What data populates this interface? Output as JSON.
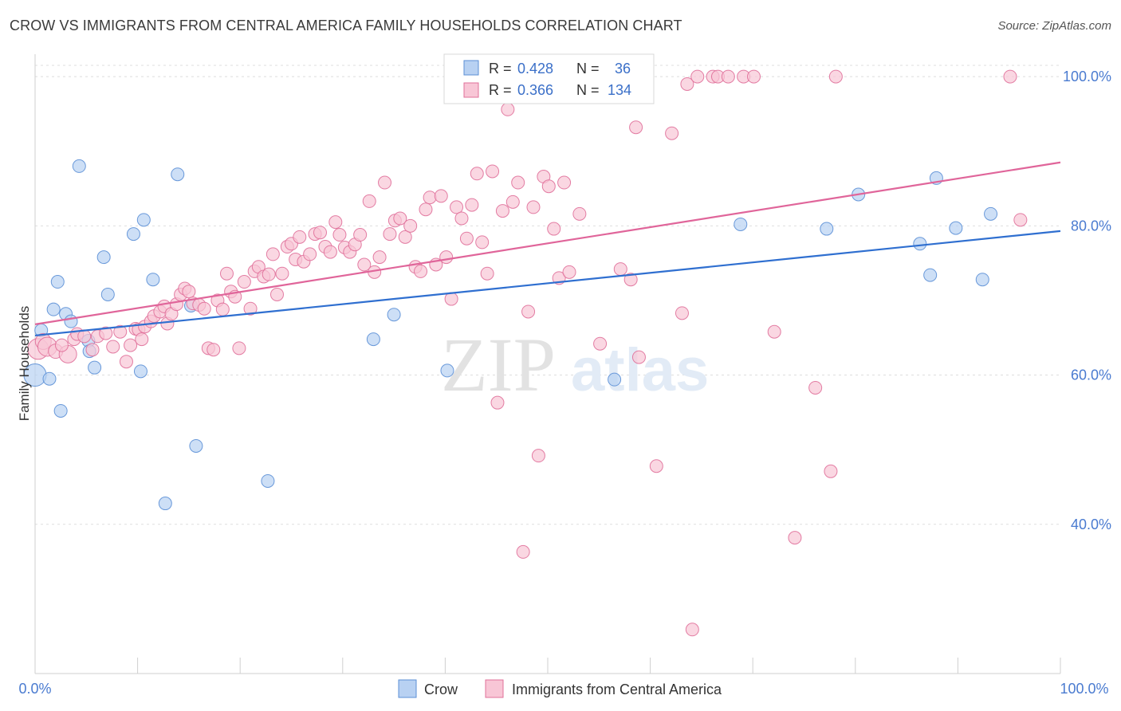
{
  "title": "CROW VS IMMIGRANTS FROM CENTRAL AMERICA FAMILY HOUSEHOLDS CORRELATION CHART",
  "source": "Source: ZipAtlas.com",
  "watermark": {
    "zip": "ZIP",
    "atlas": "atlas"
  },
  "chart_data": {
    "type": "scatter",
    "ylabel": "Family Households",
    "xlabel": "",
    "xlim": [
      0,
      100
    ],
    "ylim": [
      20,
      103
    ],
    "x_tick_labels": [
      "0.0%",
      "100.0%"
    ],
    "y_ticks": [
      40,
      60,
      80,
      100
    ],
    "y_tick_labels": [
      "40.0%",
      "60.0%",
      "80.0%",
      "100.0%"
    ],
    "grid": true,
    "legend_position": "top-center",
    "series": [
      {
        "name": "Crow",
        "color": "#5b8fd6",
        "fill": "#b8d1f2",
        "r_label": "R =",
        "r_value": "0.428",
        "n_label": "N =",
        "n_value": "36",
        "trend": [
          [
            0,
            65.3
          ],
          [
            100,
            79.3
          ]
        ],
        "points": [
          [
            0,
            60,
            14
          ],
          [
            0.6,
            66,
            8
          ],
          [
            1.4,
            59.5,
            8
          ],
          [
            1.8,
            68.8,
            8
          ],
          [
            2.2,
            72.5,
            8
          ],
          [
            2.5,
            55.2,
            8
          ],
          [
            3,
            68.2,
            8
          ],
          [
            3.5,
            67.2,
            8
          ],
          [
            4.3,
            88,
            8
          ],
          [
            5.2,
            64.6,
            8
          ],
          [
            5.3,
            63.2,
            8
          ],
          [
            5.8,
            61,
            8
          ],
          [
            6.7,
            75.8,
            8
          ],
          [
            7.1,
            70.8,
            8
          ],
          [
            9.6,
            78.9,
            8
          ],
          [
            10.3,
            60.5,
            8
          ],
          [
            10.6,
            80.8,
            8
          ],
          [
            11.5,
            72.8,
            8
          ],
          [
            12.7,
            42.8,
            8
          ],
          [
            13.9,
            86.9,
            8
          ],
          [
            15.2,
            69.3,
            8
          ],
          [
            15.7,
            50.5,
            8
          ],
          [
            22.7,
            45.8,
            8
          ],
          [
            33,
            64.8,
            8
          ],
          [
            35,
            68.1,
            8
          ],
          [
            40.2,
            60.6,
            8
          ],
          [
            56.5,
            59.4,
            8
          ],
          [
            68.8,
            80.2,
            8
          ],
          [
            77.2,
            79.6,
            8
          ],
          [
            80.3,
            84.2,
            8
          ],
          [
            86.3,
            77.6,
            8
          ],
          [
            87.3,
            73.4,
            8
          ],
          [
            87.9,
            86.4,
            8
          ],
          [
            89.8,
            79.7,
            8
          ],
          [
            92.4,
            72.8,
            8
          ],
          [
            93.2,
            81.6,
            8
          ]
        ]
      },
      {
        "name": "Immigrants from Central America",
        "color": "#e0709a",
        "fill": "#f8c6d6",
        "r_label": "R =",
        "r_value": "0.366",
        "n_label": "N =",
        "n_value": "134",
        "trend": [
          [
            0,
            66.8
          ],
          [
            100,
            88.5
          ]
        ],
        "points": [
          [
            0.3,
            63.5,
            13
          ],
          [
            0.8,
            64.5,
            10
          ],
          [
            1.2,
            63.8,
            12
          ],
          [
            2,
            63.2,
            9
          ],
          [
            3.2,
            62.8,
            11
          ],
          [
            2.6,
            64,
            8
          ],
          [
            3.8,
            64.8,
            8
          ],
          [
            4.1,
            65.5,
            8
          ],
          [
            4.8,
            65.2,
            8
          ],
          [
            5.6,
            63.4,
            8
          ],
          [
            6.1,
            65.2,
            8
          ],
          [
            6.9,
            65.6,
            8
          ],
          [
            7.6,
            63.8,
            8
          ],
          [
            8.3,
            65.8,
            8
          ],
          [
            8.9,
            61.8,
            8
          ],
          [
            9.3,
            64,
            8
          ],
          [
            9.8,
            66.2,
            8
          ],
          [
            10.1,
            66.1,
            8
          ],
          [
            10.4,
            64.8,
            8
          ],
          [
            10.7,
            66.5,
            8
          ],
          [
            11.3,
            67.2,
            8
          ],
          [
            11.6,
            67.9,
            8
          ],
          [
            12.2,
            68.5,
            8
          ],
          [
            12.6,
            69.2,
            8
          ],
          [
            12.9,
            66.9,
            8
          ],
          [
            13.3,
            68.2,
            8
          ],
          [
            13.8,
            69.5,
            8
          ],
          [
            14.2,
            70.8,
            8
          ],
          [
            14.6,
            71.6,
            8
          ],
          [
            15,
            71.2,
            8
          ],
          [
            15.4,
            69.6,
            8
          ],
          [
            16,
            69.4,
            8
          ],
          [
            16.5,
            68.9,
            8
          ],
          [
            16.9,
            63.6,
            8
          ],
          [
            17.4,
            63.4,
            8
          ],
          [
            17.8,
            70,
            8
          ],
          [
            18.3,
            68.8,
            8
          ],
          [
            18.7,
            73.6,
            8
          ],
          [
            19.1,
            71.2,
            8
          ],
          [
            19.5,
            70.5,
            8
          ],
          [
            19.9,
            63.6,
            8
          ],
          [
            20.4,
            72.5,
            8
          ],
          [
            21,
            68.9,
            8
          ],
          [
            21.4,
            73.9,
            8
          ],
          [
            21.8,
            74.5,
            8
          ],
          [
            22.3,
            73.2,
            8
          ],
          [
            22.8,
            73.5,
            8
          ],
          [
            23.2,
            76.2,
            8
          ],
          [
            23.6,
            70.8,
            8
          ],
          [
            24.1,
            73.6,
            8
          ],
          [
            24.6,
            77.2,
            8
          ],
          [
            25,
            77.6,
            8
          ],
          [
            25.4,
            75.5,
            8
          ],
          [
            25.8,
            78.5,
            8
          ],
          [
            26.2,
            75.2,
            8
          ],
          [
            26.8,
            76.2,
            8
          ],
          [
            27.3,
            78.9,
            8
          ],
          [
            27.8,
            79.1,
            8
          ],
          [
            28.3,
            77.2,
            8
          ],
          [
            28.8,
            76.5,
            8
          ],
          [
            29.3,
            80.5,
            8
          ],
          [
            29.7,
            78.8,
            8
          ],
          [
            30.2,
            77.1,
            8
          ],
          [
            30.7,
            76.5,
            8
          ],
          [
            31.2,
            77.5,
            8
          ],
          [
            31.7,
            78.8,
            8
          ],
          [
            32.1,
            74.8,
            8
          ],
          [
            32.6,
            83.3,
            8
          ],
          [
            33.1,
            73.8,
            8
          ],
          [
            33.6,
            75.8,
            8
          ],
          [
            34.1,
            85.8,
            8
          ],
          [
            34.6,
            78.9,
            8
          ],
          [
            35.1,
            80.7,
            8
          ],
          [
            35.6,
            81,
            8
          ],
          [
            36.1,
            78.5,
            8
          ],
          [
            36.6,
            80,
            8
          ],
          [
            37.1,
            74.5,
            8
          ],
          [
            37.6,
            73.9,
            8
          ],
          [
            38.1,
            82.2,
            8
          ],
          [
            38.5,
            83.8,
            8
          ],
          [
            39.1,
            74.8,
            8
          ],
          [
            39.6,
            84,
            8
          ],
          [
            40.1,
            75.8,
            8
          ],
          [
            40.6,
            70.2,
            8
          ],
          [
            41.1,
            82.5,
            8
          ],
          [
            41.6,
            81,
            8
          ],
          [
            42.1,
            78.3,
            8
          ],
          [
            42.6,
            82.8,
            8
          ],
          [
            43.1,
            87,
            8
          ],
          [
            43.6,
            77.8,
            8
          ],
          [
            44.1,
            73.6,
            8
          ],
          [
            44.6,
            87.3,
            8
          ],
          [
            45.1,
            56.3,
            8
          ],
          [
            45.6,
            82,
            8
          ],
          [
            46.1,
            95.6,
            8
          ],
          [
            46.6,
            83.2,
            8
          ],
          [
            47.1,
            85.8,
            8
          ],
          [
            47.6,
            36.3,
            8
          ],
          [
            48.1,
            68.5,
            8
          ],
          [
            48.6,
            82.5,
            8
          ],
          [
            49.1,
            49.2,
            8
          ],
          [
            49.6,
            86.6,
            8
          ],
          [
            50.1,
            85.3,
            8
          ],
          [
            50.6,
            79.6,
            8
          ],
          [
            51.1,
            73,
            8
          ],
          [
            51.6,
            85.8,
            8
          ],
          [
            52.1,
            73.8,
            8
          ],
          [
            53.1,
            81.6,
            8
          ],
          [
            53.6,
            100,
            8
          ],
          [
            54.1,
            100,
            8
          ],
          [
            55.1,
            64.2,
            8
          ],
          [
            56.1,
            100,
            8
          ],
          [
            57.1,
            74.2,
            8
          ],
          [
            58.1,
            72.8,
            8
          ],
          [
            58.6,
            93.2,
            8
          ],
          [
            58.9,
            62.4,
            8
          ],
          [
            60.6,
            47.8,
            8
          ],
          [
            62.1,
            92.4,
            8
          ],
          [
            63.1,
            68.3,
            8
          ],
          [
            63.6,
            99,
            8
          ],
          [
            64.1,
            25.9,
            8
          ],
          [
            64.6,
            100,
            8
          ],
          [
            66.1,
            100,
            8
          ],
          [
            66.6,
            100,
            8
          ],
          [
            67.6,
            100,
            8
          ],
          [
            69.1,
            100,
            8
          ],
          [
            70.1,
            100,
            8
          ],
          [
            72.1,
            65.8,
            8
          ],
          [
            74.1,
            38.2,
            8
          ],
          [
            76.1,
            58.3,
            8
          ],
          [
            77.6,
            47.1,
            8
          ],
          [
            78.1,
            100,
            8
          ],
          [
            95.1,
            100,
            8
          ],
          [
            96.1,
            80.8,
            8
          ]
        ]
      }
    ]
  }
}
